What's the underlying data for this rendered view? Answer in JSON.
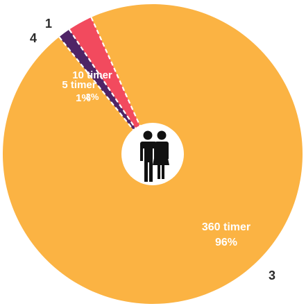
{
  "chart_data": {
    "type": "pie",
    "title": "",
    "inner_icon": "couple-icon",
    "slices": [
      {
        "marker": "1",
        "label": "10 timer",
        "percent_text": "3%",
        "value": 10,
        "color": "#f24a5e"
      },
      {
        "marker": "4",
        "label": "5 timer",
        "percent_text": "1%",
        "value": 5,
        "color": "#4e2466"
      },
      {
        "marker": "3",
        "label": "360 timer",
        "percent_text": "96%",
        "value": 360,
        "color": "#fbb343"
      }
    ]
  }
}
